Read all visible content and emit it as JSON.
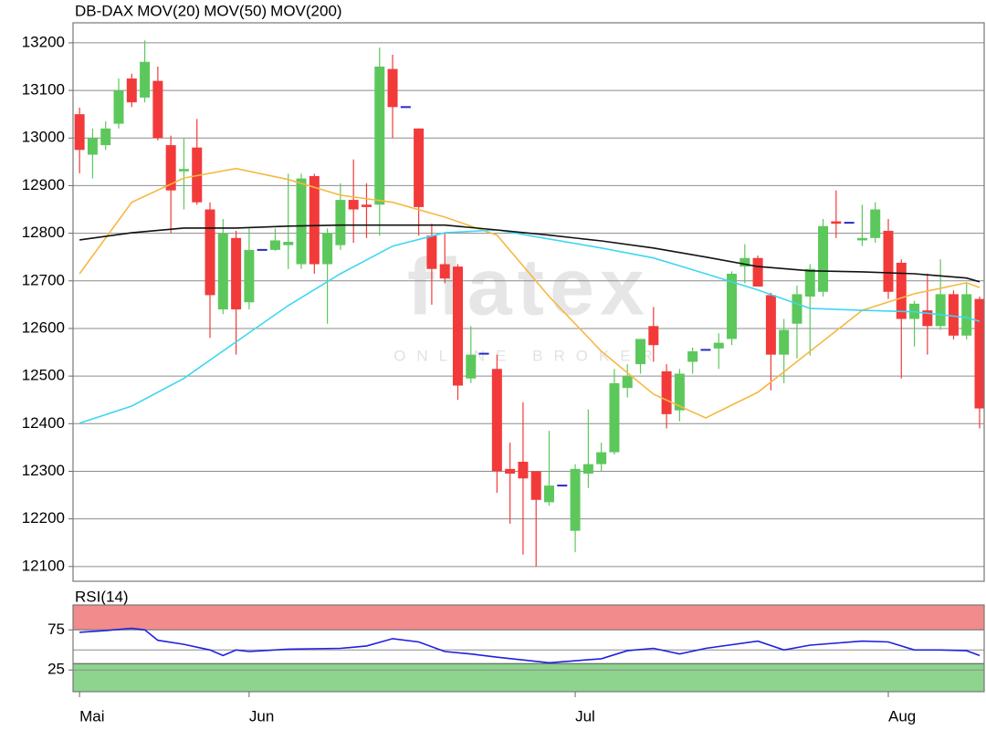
{
  "chart_data": [
    {
      "type": "candlestick",
      "xlim": [
        -0.5,
        69.35
      ],
      "ylim": [
        12069,
        13242
      ],
      "yticks": [
        12100,
        12200,
        12300,
        12400,
        12500,
        12600,
        12700,
        12800,
        12900,
        13000,
        13100,
        13200
      ],
      "grid": true,
      "watermark": {
        "brand": "flatex",
        "tagline": "ONLINE BROKER"
      },
      "candles": {
        "name": "DB-DAX",
        "color": "#f23a3a",
        "up_color": "#5cc85c",
        "doji_color": "#2828c8",
        "x": [
          0,
          1,
          2,
          3,
          4,
          5,
          6,
          7,
          8,
          9,
          10,
          11,
          12,
          13,
          14,
          15,
          16,
          17,
          18,
          19,
          20,
          21,
          22,
          23,
          24,
          25,
          26,
          27,
          28,
          29,
          30,
          31,
          32,
          33,
          34,
          35,
          36,
          37,
          38,
          39,
          40,
          41,
          42,
          43,
          44,
          45,
          46,
          47,
          48,
          49,
          50,
          51,
          52,
          53,
          54,
          55,
          56,
          57,
          58,
          59,
          60,
          61,
          62,
          63,
          64,
          65,
          66,
          67,
          68,
          69
        ],
        "open": [
          13050,
          12965,
          12985,
          13030,
          13125,
          13085,
          13120,
          12985,
          12930,
          12980,
          12850,
          12640,
          12790,
          12655,
          12765,
          12765,
          12775,
          12735,
          12920,
          12735,
          12775,
          12870,
          12860,
          12860,
          13145,
          13065,
          13020,
          12795,
          12735,
          12730,
          12495,
          12547,
          12515,
          12305,
          12320,
          12300,
          12235,
          12270,
          12175,
          12295,
          12315,
          12340,
          12475,
          12525,
          12605,
          12510,
          12428,
          12530,
          12555,
          12558,
          12578,
          12730,
          12748,
          12670,
          12545,
          12610,
          12667,
          12677,
          12825,
          12822,
          12785,
          12790,
          12805,
          12738,
          12620,
          12638,
          12605,
          12672,
          12585,
          12662
        ],
        "high": [
          13064,
          13020,
          13035,
          13125,
          13135,
          13205,
          13150,
          13005,
          12999,
          13040,
          12865,
          12830,
          12805,
          12810,
          12765,
          12810,
          12925,
          12925,
          12925,
          12810,
          12905,
          12955,
          12905,
          13190,
          13175,
          13065,
          13020,
          12820,
          12800,
          12735,
          12605,
          12547,
          12545,
          12360,
          12445,
          12300,
          12385,
          12270,
          12315,
          12430,
          12360,
          12515,
          12525,
          12578,
          12645,
          12525,
          12515,
          12560,
          12555,
          12590,
          12720,
          12777,
          12753,
          12675,
          12620,
          12690,
          12735,
          12830,
          12890,
          12822,
          12860,
          12865,
          12830,
          12745,
          12658,
          12715,
          12745,
          12680,
          12695,
          12667
        ],
        "low": [
          12926,
          12915,
          12975,
          13020,
          13065,
          13075,
          12995,
          12800,
          12850,
          12860,
          12580,
          12630,
          12545,
          12640,
          12765,
          12763,
          12725,
          12725,
          12715,
          12610,
          12765,
          12780,
          12790,
          12795,
          13000,
          13065,
          12795,
          12650,
          12695,
          12450,
          12485,
          12547,
          12255,
          12190,
          12125,
          12100,
          12228,
          12270,
          12130,
          12265,
          12300,
          12335,
          12455,
          12505,
          12530,
          12390,
          12405,
          12505,
          12555,
          12515,
          12565,
          12695,
          12688,
          12470,
          12485,
          12537,
          12543,
          12667,
          12790,
          12822,
          12773,
          12780,
          12662,
          12495,
          12562,
          12545,
          12597,
          12577,
          12577,
          12390
        ],
        "close": [
          12975,
          13000,
          13020,
          13100,
          13075,
          13160,
          13000,
          12890,
          12935,
          12865,
          12670,
          12800,
          12640,
          12765,
          12765,
          12785,
          12782,
          12915,
          12735,
          12800,
          12870,
          12850,
          12855,
          13150,
          13065,
          13065,
          12855,
          12725,
          12705,
          12480,
          12545,
          12547,
          12300,
          12295,
          12285,
          12240,
          12270,
          12270,
          12305,
          12315,
          12340,
          12485,
          12500,
          12578,
          12565,
          12420,
          12505,
          12552,
          12555,
          12570,
          12715,
          12748,
          12688,
          12545,
          12597,
          12672,
          12725,
          12815,
          12820,
          12822,
          12790,
          12850,
          12677,
          12620,
          12652,
          12605,
          12672,
          12585,
          12672,
          12432
        ]
      },
      "series": [
        {
          "name": "MOV(20)",
          "color": "#f5b941",
          "x": [
            0,
            4,
            8,
            12,
            16,
            20,
            24,
            28,
            32,
            36,
            40,
            44,
            48,
            52,
            56,
            60,
            64,
            68,
            69
          ],
          "values": [
            12715,
            12865,
            12916,
            12936,
            12913,
            12880,
            12865,
            12834,
            12796,
            12667,
            12552,
            12462,
            12412,
            12466,
            12552,
            12638,
            12673,
            12696,
            12686
          ]
        },
        {
          "name": "MOV(50)",
          "color": "#3fd6f2",
          "x": [
            0,
            4,
            8,
            12,
            16,
            20,
            24,
            28,
            32,
            36,
            40,
            44,
            48,
            52,
            56,
            60,
            64,
            68,
            69
          ],
          "values": [
            12401,
            12437,
            12495,
            12572,
            12648,
            12715,
            12773,
            12801,
            12807,
            12788,
            12769,
            12748,
            12715,
            12681,
            12642,
            12638,
            12635,
            12623,
            12615
          ]
        },
        {
          "name": "MOV(200)",
          "color": "#111111",
          "x": [
            0,
            4,
            8,
            12,
            16,
            20,
            24,
            28,
            32,
            36,
            40,
            44,
            48,
            52,
            56,
            60,
            64,
            68,
            69
          ],
          "values": [
            12786,
            12801,
            12811,
            12811,
            12815,
            12817,
            12817,
            12817,
            12807,
            12796,
            12784,
            12769,
            12750,
            12730,
            12721,
            12719,
            12715,
            12706,
            12698
          ]
        }
      ]
    },
    {
      "type": "line",
      "title": "RSI(14)",
      "title_color": "#2020d0",
      "xlim": [
        -0.5,
        69.35
      ],
      "ylim": [
        -2,
        106
      ],
      "yticks": [
        25,
        75
      ],
      "midline": 50,
      "zones": [
        {
          "from": 75,
          "to": 106,
          "color": "#f28b8b"
        },
        {
          "from": -2,
          "to": 33,
          "color": "#8ed48e"
        }
      ],
      "xticks": [
        {
          "value": 0,
          "label": "Mai"
        },
        {
          "value": 13,
          "label": "Jun"
        },
        {
          "value": 38,
          "label": "Jul"
        },
        {
          "value": 62,
          "label": "Aug"
        }
      ],
      "series": [
        {
          "name": "RSI(14)",
          "color": "#2020e0",
          "x": [
            0,
            2,
            4,
            5,
            6,
            8,
            10,
            11,
            12,
            13,
            16,
            20,
            22,
            24,
            26,
            28,
            30,
            32,
            36,
            40,
            42,
            44,
            46,
            48,
            52,
            54,
            56,
            60,
            62,
            64,
            66,
            68,
            69
          ],
          "values": [
            72,
            74,
            77,
            75,
            62,
            57,
            50,
            43,
            50,
            48,
            51,
            52,
            55,
            64,
            60,
            48,
            45,
            41,
            34,
            39,
            49,
            52,
            45,
            52,
            61,
            50,
            56,
            61,
            60,
            50,
            50,
            49,
            43
          ]
        }
      ]
    }
  ]
}
